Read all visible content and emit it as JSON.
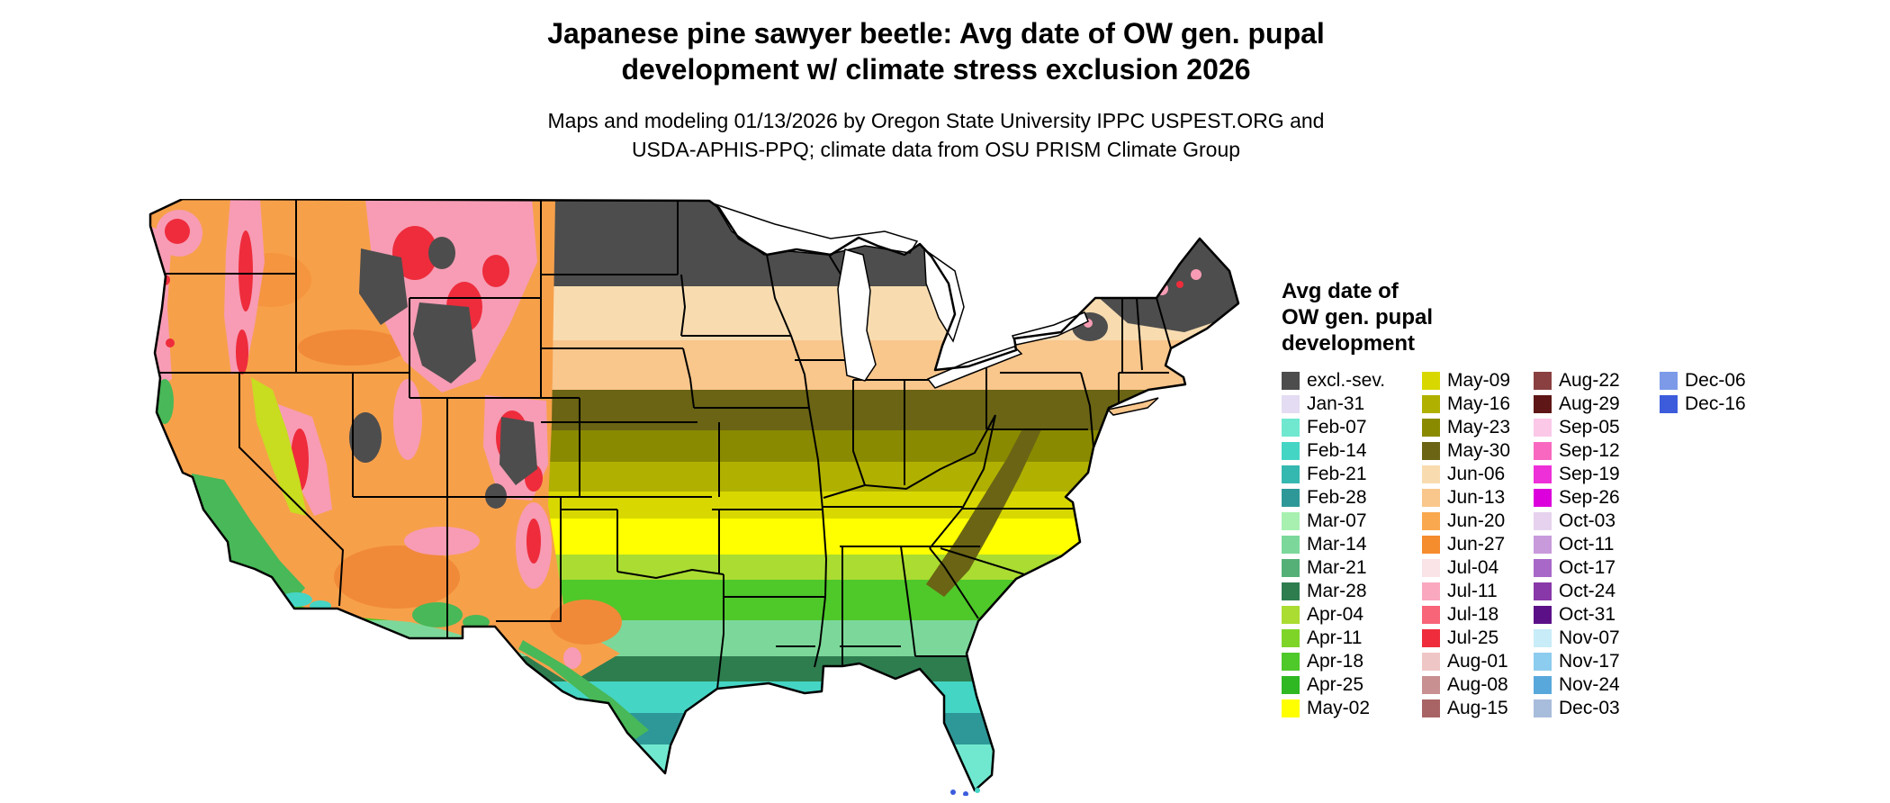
{
  "title": {
    "line1": "Japanese pine sawyer beetle: Avg date of OW gen. pupal",
    "line2": "development w/ climate stress exclusion 2026"
  },
  "subtitle": {
    "line1": "Maps and modeling 01/13/2026 by Oregon State University IPPC USPEST.ORG and",
    "line2": "USDA-APHIS-PPQ; climate data from OSU PRISM Climate Group"
  },
  "map": {
    "description": "Contiguous United States choropleth map of average date of overwintering generation pupal development, colored by date class with climate stress exclusion shown in dark gray"
  },
  "legend": {
    "title_lines": [
      "Avg date of",
      "OW gen. pupal",
      "development"
    ],
    "columns": [
      {
        "entries": [
          {
            "label": "excl.-sev.",
            "color": "#4D4D4D"
          },
          {
            "label": "Jan-31",
            "color": "#E4DCF2"
          },
          {
            "label": "Feb-07",
            "color": "#70E8D0"
          },
          {
            "label": "Feb-14",
            "color": "#45D5C5"
          },
          {
            "label": "Feb-21",
            "color": "#35B8B0"
          },
          {
            "label": "Feb-28",
            "color": "#2E9898"
          },
          {
            "label": "Mar-07",
            "color": "#A8F0B0"
          },
          {
            "label": "Mar-14",
            "color": "#7CD89A"
          },
          {
            "label": "Mar-21",
            "color": "#55B078"
          },
          {
            "label": "Mar-28",
            "color": "#2E7D4F"
          },
          {
            "label": "Apr-04",
            "color": "#AADC32"
          },
          {
            "label": "Apr-11",
            "color": "#7FD428"
          },
          {
            "label": "Apr-18",
            "color": "#4FC82A"
          },
          {
            "label": "Apr-25",
            "color": "#2FB822"
          },
          {
            "label": "May-02",
            "color": "#FFFF00"
          }
        ]
      },
      {
        "entries": [
          {
            "label": "May-09",
            "color": "#D8D800"
          },
          {
            "label": "May-16",
            "color": "#B0B000"
          },
          {
            "label": "May-23",
            "color": "#8A8A00"
          },
          {
            "label": "May-30",
            "color": "#6A6414"
          },
          {
            "label": "Jun-06",
            "color": "#F8DCB0"
          },
          {
            "label": "Jun-13",
            "color": "#F9C68C"
          },
          {
            "label": "Jun-20",
            "color": "#F9A84F"
          },
          {
            "label": "Jun-27",
            "color": "#F58C2E"
          },
          {
            "label": "Jul-04",
            "color": "#FBE4E8"
          },
          {
            "label": "Jul-11",
            "color": "#F9A8C0"
          },
          {
            "label": "Jul-18",
            "color": "#F86478"
          },
          {
            "label": "Jul-25",
            "color": "#EE2C3C"
          },
          {
            "label": "Aug-01",
            "color": "#EFC6C6"
          },
          {
            "label": "Aug-08",
            "color": "#C89090"
          },
          {
            "label": "Aug-15",
            "color": "#A86464"
          }
        ]
      },
      {
        "entries": [
          {
            "label": "Aug-22",
            "color": "#8A4040"
          },
          {
            "label": "Aug-29",
            "color": "#5E1616"
          },
          {
            "label": "Sep-05",
            "color": "#FBC8E8"
          },
          {
            "label": "Sep-12",
            "color": "#F868C0"
          },
          {
            "label": "Sep-19",
            "color": "#EE30D8"
          },
          {
            "label": "Sep-26",
            "color": "#DC00DC"
          },
          {
            "label": "Oct-03",
            "color": "#E6D2EE"
          },
          {
            "label": "Oct-11",
            "color": "#C89ADC"
          },
          {
            "label": "Oct-17",
            "color": "#A868C8"
          },
          {
            "label": "Oct-24",
            "color": "#8838A8"
          },
          {
            "label": "Oct-31",
            "color": "#5C1088"
          },
          {
            "label": "Nov-07",
            "color": "#C8ECF8"
          },
          {
            "label": "Nov-17",
            "color": "#8CCCEE"
          },
          {
            "label": "Nov-24",
            "color": "#58A8DC"
          },
          {
            "label": "Dec-03",
            "color": "#A8BCDC"
          }
        ]
      },
      {
        "entries": [
          {
            "label": "Dec-06",
            "color": "#7C9AE8"
          },
          {
            "label": "Dec-16",
            "color": "#3C5CDC"
          }
        ]
      }
    ]
  }
}
